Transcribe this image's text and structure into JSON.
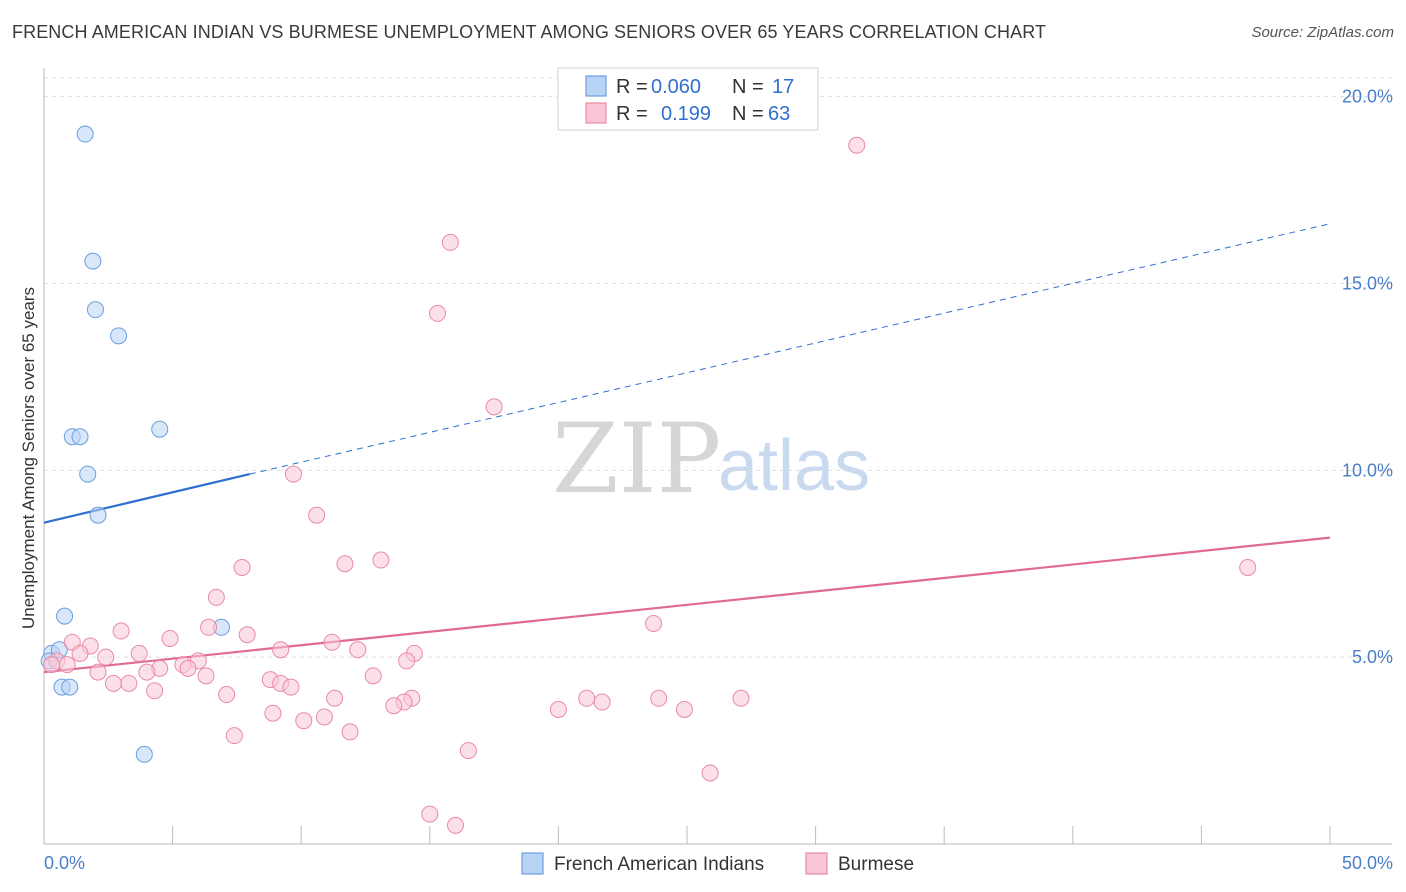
{
  "header": {
    "title": "FRENCH AMERICAN INDIAN VS BURMESE UNEMPLOYMENT AMONG SENIORS OVER 65 YEARS CORRELATION CHART",
    "source": "Source: ZipAtlas.com"
  },
  "watermark": {
    "zip": "ZIP",
    "atlas": "atlas"
  },
  "legend": {
    "r_label": "R =",
    "n_label": "N =",
    "rows": [
      {
        "series": "French American Indians",
        "r": "0.060",
        "n": "17",
        "fill": "#b8d4f5",
        "stroke": "#6b9fe0"
      },
      {
        "series": "Burmese",
        "r": "0.199",
        "n": "63",
        "fill": "#f9c6d5",
        "stroke": "#e88aa8"
      }
    ]
  },
  "chart_data": {
    "type": "scatter",
    "title": "FRENCH AMERICAN INDIAN VS BURMESE UNEMPLOYMENT AMONG SENIORS OVER 65 YEARS CORRELATION CHART",
    "xlabel": "",
    "ylabel": "Unemployment Among Seniors over 65 years",
    "xlim": [
      0,
      50
    ],
    "ylim": [
      0,
      20.5
    ],
    "x_tick_labels": [
      "0.0%",
      "50.0%"
    ],
    "y_ticks": [
      5,
      10,
      15,
      20
    ],
    "y_tick_labels": [
      "5.0%",
      "10.0%",
      "15.0%",
      "20.0%"
    ],
    "colors": {
      "blue_line": "#2f6fcf",
      "pink_line": "#e06a94",
      "axis_text": "#4a7ec9",
      "grid": "#dddddd"
    },
    "series": [
      {
        "name": "French American Indians",
        "fill": "#b8d4f5",
        "stroke": "#6b9fe0",
        "points": [
          [
            1.6,
            19.0
          ],
          [
            1.9,
            15.6
          ],
          [
            2.0,
            14.3
          ],
          [
            2.9,
            13.6
          ],
          [
            1.1,
            10.9
          ],
          [
            1.4,
            10.9
          ],
          [
            4.5,
            11.1
          ],
          [
            1.7,
            9.9
          ],
          [
            2.1,
            8.8
          ],
          [
            0.8,
            6.1
          ],
          [
            6.9,
            5.8
          ],
          [
            0.3,
            5.1
          ],
          [
            0.6,
            5.2
          ],
          [
            0.2,
            4.9
          ],
          [
            0.7,
            4.2
          ],
          [
            1.0,
            4.2
          ],
          [
            3.9,
            2.4
          ]
        ],
        "trend": {
          "x": [
            0,
            8
          ],
          "y": [
            8.6,
            9.9
          ],
          "x_dashed": [
            8,
            50
          ],
          "y_dashed": [
            9.9,
            16.6
          ]
        }
      },
      {
        "name": "Burmese",
        "fill": "#f9c6d5",
        "stroke": "#e88aa8",
        "points": [
          [
            31.6,
            18.7
          ],
          [
            15.8,
            16.1
          ],
          [
            15.3,
            14.2
          ],
          [
            17.5,
            11.7
          ],
          [
            9.7,
            9.9
          ],
          [
            10.6,
            8.8
          ],
          [
            46.8,
            7.4
          ],
          [
            7.7,
            7.4
          ],
          [
            11.7,
            7.5
          ],
          [
            13.1,
            7.6
          ],
          [
            6.7,
            6.6
          ],
          [
            23.7,
            5.9
          ],
          [
            6.4,
            5.8
          ],
          [
            3.0,
            5.7
          ],
          [
            7.9,
            5.6
          ],
          [
            4.9,
            5.5
          ],
          [
            1.1,
            5.4
          ],
          [
            1.8,
            5.3
          ],
          [
            11.2,
            5.4
          ],
          [
            12.2,
            5.2
          ],
          [
            14.4,
            5.1
          ],
          [
            9.2,
            5.2
          ],
          [
            1.4,
            5.1
          ],
          [
            3.7,
            5.1
          ],
          [
            2.4,
            5.0
          ],
          [
            14.1,
            4.9
          ],
          [
            0.5,
            4.9
          ],
          [
            0.9,
            4.8
          ],
          [
            0.3,
            4.8
          ],
          [
            6.0,
            4.9
          ],
          [
            5.4,
            4.8
          ],
          [
            4.5,
            4.7
          ],
          [
            5.6,
            4.7
          ],
          [
            2.1,
            4.6
          ],
          [
            4.0,
            4.6
          ],
          [
            12.8,
            4.5
          ],
          [
            6.3,
            4.5
          ],
          [
            8.8,
            4.4
          ],
          [
            3.3,
            4.3
          ],
          [
            2.7,
            4.3
          ],
          [
            9.2,
            4.3
          ],
          [
            9.6,
            4.2
          ],
          [
            4.3,
            4.1
          ],
          [
            7.1,
            4.0
          ],
          [
            21.1,
            3.9
          ],
          [
            11.3,
            3.9
          ],
          [
            14.3,
            3.9
          ],
          [
            23.9,
            3.9
          ],
          [
            27.1,
            3.9
          ],
          [
            21.7,
            3.8
          ],
          [
            14.0,
            3.8
          ],
          [
            13.6,
            3.7
          ],
          [
            20.0,
            3.6
          ],
          [
            24.9,
            3.6
          ],
          [
            8.9,
            3.5
          ],
          [
            10.9,
            3.4
          ],
          [
            10.1,
            3.3
          ],
          [
            11.9,
            3.0
          ],
          [
            7.4,
            2.9
          ],
          [
            16.5,
            2.5
          ],
          [
            25.9,
            1.9
          ],
          [
            15.0,
            0.8
          ],
          [
            16.0,
            0.5
          ]
        ],
        "trend": {
          "x": [
            0,
            50
          ],
          "y": [
            4.6,
            8.2
          ]
        }
      }
    ]
  }
}
